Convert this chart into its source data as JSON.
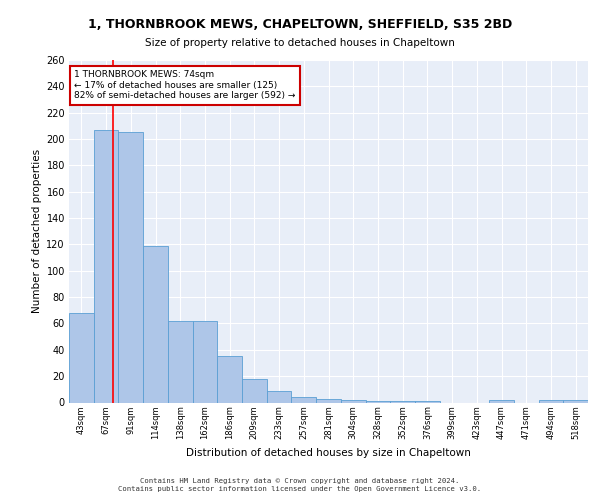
{
  "title_line1": "1, THORNBROOK MEWS, CHAPELTOWN, SHEFFIELD, S35 2BD",
  "title_line2": "Size of property relative to detached houses in Chapeltown",
  "xlabel": "Distribution of detached houses by size in Chapeltown",
  "ylabel": "Number of detached properties",
  "bar_labels": [
    "43sqm",
    "67sqm",
    "91sqm",
    "114sqm",
    "138sqm",
    "162sqm",
    "186sqm",
    "209sqm",
    "233sqm",
    "257sqm",
    "281sqm",
    "304sqm",
    "328sqm",
    "352sqm",
    "376sqm",
    "399sqm",
    "423sqm",
    "447sqm",
    "471sqm",
    "494sqm",
    "518sqm"
  ],
  "bar_values": [
    68,
    207,
    205,
    119,
    62,
    62,
    35,
    18,
    9,
    4,
    3,
    2,
    1,
    1,
    1,
    0,
    0,
    2,
    0,
    2,
    2
  ],
  "bar_color": "#aec6e8",
  "bar_edge_color": "#5a9fd4",
  "background_color": "#e8eef8",
  "grid_color": "#ffffff",
  "annotation_text": "1 THORNBROOK MEWS: 74sqm\n← 17% of detached houses are smaller (125)\n82% of semi-detached houses are larger (592) →",
  "annotation_box_color": "#ffffff",
  "annotation_box_edge_color": "#cc0000",
  "footer_line1": "Contains HM Land Registry data © Crown copyright and database right 2024.",
  "footer_line2": "Contains public sector information licensed under the Open Government Licence v3.0.",
  "ylim": [
    0,
    260
  ],
  "yticks": [
    0,
    20,
    40,
    60,
    80,
    100,
    120,
    140,
    160,
    180,
    200,
    220,
    240,
    260
  ],
  "figsize": [
    6.0,
    5.0
  ],
  "dpi": 100
}
